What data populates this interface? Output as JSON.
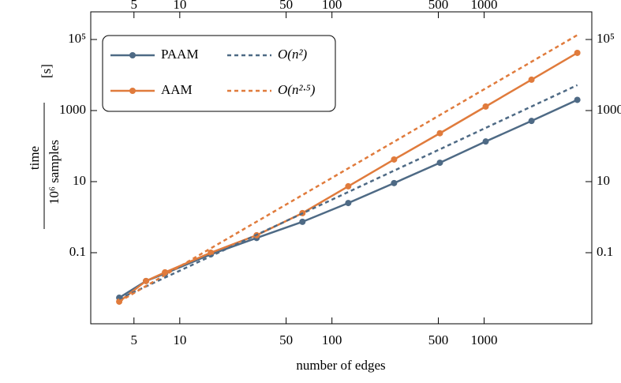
{
  "chart_data": {
    "type": "line",
    "x_label": "number of edges",
    "y_label": {
      "numerator": "time",
      "denominator": "10⁶ samples",
      "unit": "[s]"
    },
    "xscale": "log",
    "yscale": "log",
    "xlim": [
      2.6,
      5100
    ],
    "ylim": [
      0.001,
      600000
    ],
    "xticks": [
      5,
      10,
      50,
      100,
      500,
      1000
    ],
    "yticks": [
      0.1,
      10,
      1000,
      {
        "value": 100000,
        "label": "10⁵"
      }
    ],
    "legend": "upper left",
    "series": [
      {
        "name": "PAAM",
        "color": "#4e6a85",
        "line_style": "solid",
        "markers": true,
        "x": [
          4,
          6,
          8,
          16,
          32,
          64,
          128,
          256,
          512,
          1024,
          2048,
          4096
        ],
        "values": [
          0.0054,
          0.016,
          0.026,
          0.09,
          0.26,
          0.74,
          2.5,
          9.1,
          34,
          135,
          510,
          2000
        ]
      },
      {
        "name": "AAM",
        "color": "#e07b3c",
        "line_style": "solid",
        "markers": true,
        "x": [
          4,
          6,
          8,
          16,
          32,
          64,
          128,
          256,
          512,
          1024,
          2048,
          4096
        ],
        "values": [
          0.0042,
          0.016,
          0.028,
          0.1,
          0.31,
          1.3,
          7.4,
          42,
          230,
          1300,
          7400,
          42000
        ]
      },
      {
        "name": "O(n²)",
        "color": "#4e6a85",
        "line_style": "dashed",
        "markers": false,
        "x": [
          4,
          4096
        ],
        "values": [
          0.005,
          5200
        ]
      },
      {
        "name": "O(n²·⁵)",
        "color": "#e07b3c",
        "line_style": "dashed",
        "markers": false,
        "x": [
          4,
          4096
        ],
        "values": [
          0.0042,
          133000
        ]
      }
    ]
  }
}
